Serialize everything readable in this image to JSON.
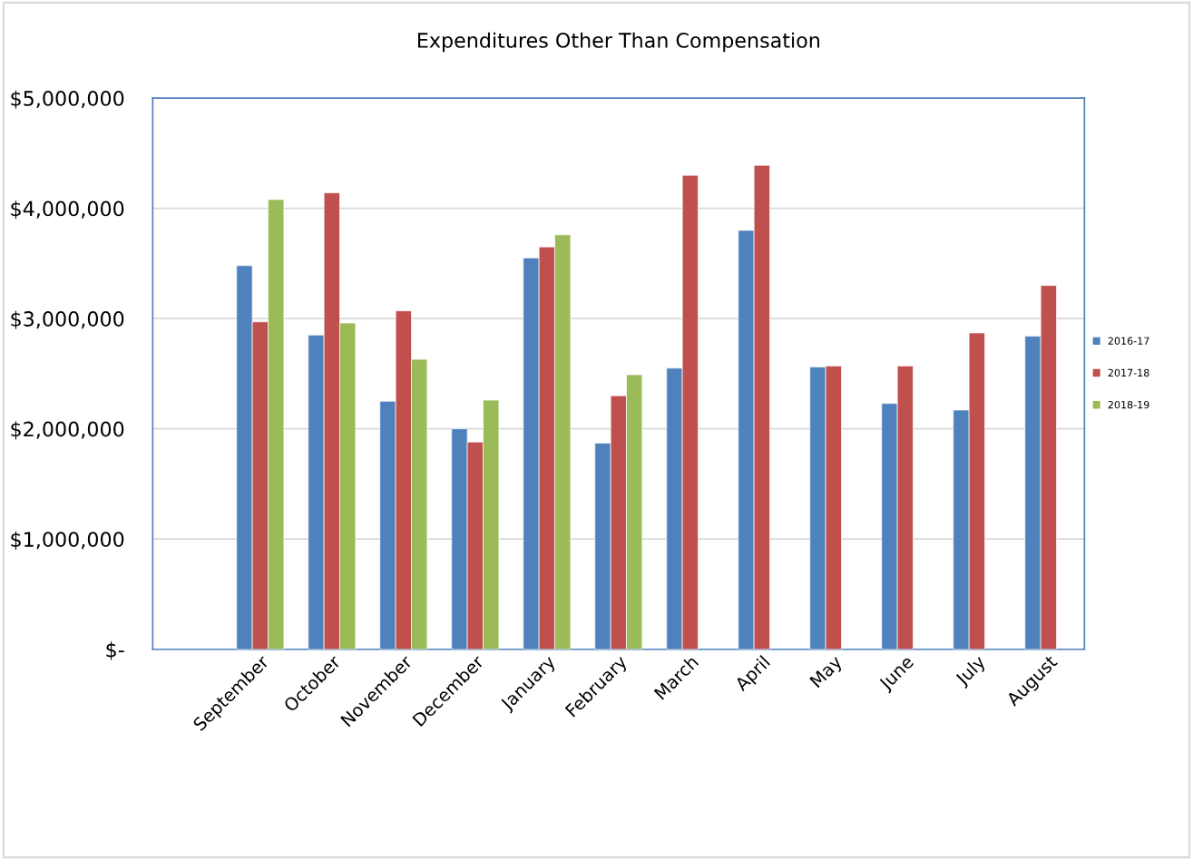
{
  "chart_data": {
    "type": "bar",
    "title": "Expenditures Other Than Compensation",
    "categories": [
      null,
      "September",
      "October",
      "November",
      "December",
      "January",
      "February",
      "March",
      "April",
      "May",
      "June",
      "July",
      "August"
    ],
    "series": [
      {
        "name": "2016-17",
        "color": "#4f81bd",
        "values": [
          null,
          3480000,
          2850000,
          2250000,
          2000000,
          3550000,
          1870000,
          2550000,
          3800000,
          2560000,
          2230000,
          2170000,
          2840000
        ]
      },
      {
        "name": "2017-18",
        "color": "#c0504d",
        "values": [
          null,
          2970000,
          4140000,
          3070000,
          1880000,
          3650000,
          2300000,
          4300000,
          4390000,
          2570000,
          2570000,
          2870000,
          3300000
        ]
      },
      {
        "name": "2018-19",
        "color": "#9bbb59",
        "values": [
          null,
          4080000,
          2960000,
          2630000,
          2260000,
          3760000,
          2490000,
          null,
          null,
          null,
          null,
          null,
          null
        ]
      }
    ],
    "ylim": [
      0,
      5000000
    ],
    "yticks": [
      {
        "value": 0,
        "label": "$-"
      },
      {
        "value": 1000000,
        "label": "$1,000,000"
      },
      {
        "value": 2000000,
        "label": "$2,000,000"
      },
      {
        "value": 3000000,
        "label": "$3,000,000"
      },
      {
        "value": 4000000,
        "label": "$4,000,000"
      },
      {
        "value": 5000000,
        "label": "$5,000,000"
      }
    ],
    "grid": "y",
    "legend": "right"
  }
}
